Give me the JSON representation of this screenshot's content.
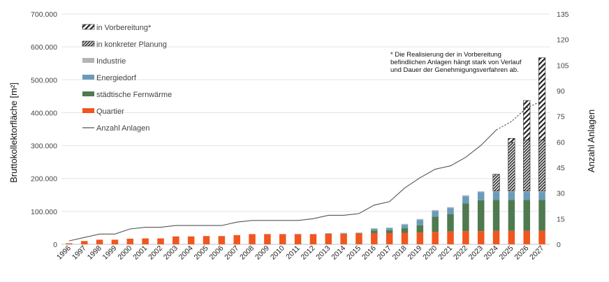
{
  "chart_data": {
    "type": "bar",
    "stacked": true,
    "ylabel": "Bruttokollektorfläche [m²]",
    "y2label": "Anzahl Anlagen",
    "ylim": [
      0,
      700000
    ],
    "y2lim": [
      0,
      135
    ],
    "yticks": [
      "0",
      "100.000",
      "200.000",
      "300.000",
      "400.000",
      "500.000",
      "600.000",
      "700.000"
    ],
    "yticks_values": [
      0,
      100000,
      200000,
      300000,
      400000,
      500000,
      600000,
      700000
    ],
    "y2ticks": [
      "0",
      "15",
      "30",
      "45",
      "60",
      "75",
      "90",
      "105",
      "120",
      "135"
    ],
    "y2ticks_values": [
      0,
      15,
      30,
      45,
      60,
      75,
      90,
      105,
      120,
      135
    ],
    "categories": [
      "1996",
      "1997",
      "1998",
      "1999",
      "2000",
      "2001",
      "2002",
      "2003",
      "2004",
      "2005",
      "2006",
      "2007",
      "2008",
      "2009",
      "2010",
      "2011",
      "2012",
      "2013",
      "2014",
      "2015",
      "2016",
      "2017",
      "2018",
      "2019",
      "2020",
      "2021",
      "2022",
      "2023",
      "2024",
      "2025",
      "2026",
      "2027"
    ],
    "series": [
      {
        "name": "Quartier",
        "color": "#f0561f",
        "pattern": "solid",
        "values": [
          3000,
          10000,
          14000,
          14000,
          17000,
          18000,
          18000,
          24000,
          24000,
          25000,
          25000,
          28000,
          31000,
          31000,
          31000,
          31000,
          31000,
          32000,
          32000,
          33000,
          34000,
          34000,
          35000,
          36000,
          38000,
          39000,
          40000,
          40000,
          41000,
          41000,
          41000,
          41000
        ]
      },
      {
        "name": "städtische Fernwärme",
        "color": "#4f7a50",
        "pattern": "solid",
        "values": [
          0,
          0,
          0,
          0,
          0,
          0,
          0,
          0,
          0,
          0,
          0,
          0,
          0,
          0,
          0,
          0,
          0,
          0,
          0,
          0,
          8000,
          9000,
          14000,
          22000,
          46000,
          53000,
          84000,
          94000,
          94000,
          94000,
          94000,
          94000
        ]
      },
      {
        "name": "Energiedorf",
        "color": "#6a9bba",
        "pattern": "solid",
        "values": [
          0,
          0,
          0,
          0,
          0,
          0,
          0,
          0,
          0,
          0,
          0,
          0,
          0,
          0,
          0,
          0,
          0,
          1000,
          1000,
          1000,
          5000,
          6000,
          10000,
          16000,
          17000,
          18000,
          22000,
          24000,
          24000,
          24000,
          24000,
          24000
        ]
      },
      {
        "name": "Industrie",
        "color": "#b4b4b4",
        "pattern": "solid",
        "values": [
          0,
          0,
          0,
          0,
          0,
          0,
          0,
          0,
          0,
          0,
          0,
          0,
          0,
          0,
          0,
          0,
          0,
          1000,
          2000,
          2000,
          2000,
          2000,
          3000,
          3000,
          3000,
          3000,
          3000,
          3000,
          3000,
          3000,
          3000,
          3000
        ]
      },
      {
        "name": "in konkreter Planung",
        "color": "#333333",
        "pattern": "dense",
        "values": [
          0,
          0,
          0,
          0,
          0,
          0,
          0,
          0,
          0,
          0,
          0,
          0,
          0,
          0,
          0,
          0,
          0,
          0,
          0,
          0,
          0,
          0,
          0,
          0,
          0,
          0,
          0,
          0,
          51000,
          148000,
          155000,
          155000
        ]
      },
      {
        "name": "in Vorbereitung*",
        "color": "#222222",
        "pattern": "wide",
        "values": [
          0,
          0,
          0,
          0,
          0,
          0,
          0,
          0,
          0,
          0,
          0,
          0,
          0,
          0,
          0,
          0,
          0,
          0,
          0,
          0,
          0,
          0,
          0,
          0,
          0,
          0,
          0,
          0,
          0,
          12000,
          120000,
          250000
        ]
      }
    ],
    "line": {
      "name": "Anzahl Anlagen",
      "axis": "y2",
      "values": [
        2,
        4,
        6,
        6,
        9,
        10,
        10,
        11,
        11,
        11,
        11,
        13,
        14,
        14,
        14,
        14,
        15,
        17,
        17,
        18,
        23,
        25,
        33,
        39,
        44,
        46,
        51,
        58,
        67,
        72,
        80,
        84
      ],
      "dashed_from_index": 28
    },
    "legend": [
      {
        "label": "in Vorbereitung*",
        "pattern": "wide"
      },
      {
        "label": "in konkreter Planung",
        "pattern": "dense"
      },
      {
        "label": "Industrie",
        "pattern": "solid",
        "color": "#b4b4b4"
      },
      {
        "label": "Energiedorf",
        "pattern": "solid",
        "color": "#6a9bba"
      },
      {
        "label": "städtische Fernwärme",
        "pattern": "solid",
        "color": "#4f7a50"
      },
      {
        "label": "Quartier",
        "pattern": "solid",
        "color": "#f0561f"
      },
      {
        "label": "Anzahl Anlagen",
        "pattern": "line",
        "color": "#555555"
      }
    ],
    "note": [
      "* Die Realisierung der in Vorbereitung",
      "befindlichen Anlagen hängt stark von Verlauf",
      "und Dauer der Genehmigungsverfahren ab."
    ]
  }
}
